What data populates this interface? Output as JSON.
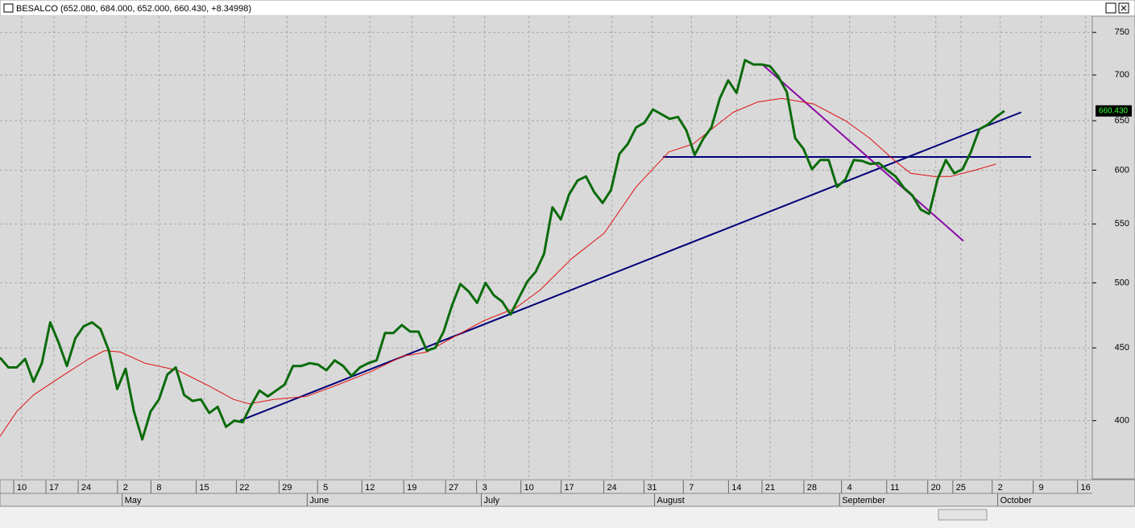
{
  "chart_data": {
    "type": "line",
    "title": "BESALCO (652.080, 684.000, 652.000, 660.430, +8.34998)",
    "log_scale": true,
    "grid": true,
    "ylim": [
      364,
      770
    ],
    "yticks": [
      400,
      450,
      500,
      550,
      600,
      650,
      700,
      750
    ],
    "xlim": [
      0,
      130.5
    ],
    "xticks": [
      {
        "value": 2.6,
        "label": "10"
      },
      {
        "value": 6.45,
        "label": "17"
      },
      {
        "value": 10.3,
        "label": "24"
      },
      {
        "value": 15.0,
        "label": "2"
      },
      {
        "value": 19.0,
        "label": "8"
      },
      {
        "value": 24.4,
        "label": "15"
      },
      {
        "value": 29.2,
        "label": "22"
      },
      {
        "value": 34.3,
        "label": "29"
      },
      {
        "value": 38.9,
        "label": "5"
      },
      {
        "value": 44.2,
        "label": "12"
      },
      {
        "value": 49.2,
        "label": "19"
      },
      {
        "value": 54.2,
        "label": "27"
      },
      {
        "value": 57.9,
        "label": "3"
      },
      {
        "value": 63.2,
        "label": "10"
      },
      {
        "value": 68.0,
        "label": "17"
      },
      {
        "value": 73.1,
        "label": "24"
      },
      {
        "value": 77.9,
        "label": "31"
      },
      {
        "value": 82.6,
        "label": "7"
      },
      {
        "value": 88.0,
        "label": "14"
      },
      {
        "value": 92.0,
        "label": "21"
      },
      {
        "value": 97.0,
        "label": "28"
      },
      {
        "value": 101.5,
        "label": "4"
      },
      {
        "value": 106.9,
        "label": "11"
      },
      {
        "value": 111.8,
        "label": "20"
      },
      {
        "value": 114.8,
        "label": "25"
      },
      {
        "value": 119.5,
        "label": "2"
      },
      {
        "value": 124.4,
        "label": "9"
      },
      {
        "value": 129.7,
        "label": "16"
      }
    ],
    "month_ticks": [
      {
        "value": 14.6,
        "label": "May"
      },
      {
        "value": 36.7,
        "label": "June"
      },
      {
        "value": 57.5,
        "label": "July"
      },
      {
        "value": 78.2,
        "label": "August"
      },
      {
        "value": 100.3,
        "label": "September"
      },
      {
        "value": 119.2,
        "label": "October"
      }
    ],
    "series": [
      {
        "color": "#0b6b0b",
        "values": [
          443,
          436,
          436,
          442,
          426,
          439,
          469,
          454,
          437,
          457,
          466,
          469,
          464,
          448,
          421,
          435,
          406,
          388,
          406,
          414,
          431,
          436,
          417,
          413,
          414,
          405,
          409,
          396,
          400,
          399,
          410,
          420,
          416,
          420,
          424,
          437,
          437,
          439,
          438,
          434,
          441,
          437,
          430,
          436,
          439,
          441,
          461,
          461,
          467,
          462,
          462,
          448,
          450,
          462,
          482,
          499,
          493,
          484,
          500,
          490,
          485,
          475,
          488,
          501,
          509,
          524,
          565,
          554,
          577,
          590,
          594,
          579,
          569,
          581,
          616,
          626,
          643,
          648,
          662,
          657,
          652,
          654,
          640,
          615,
          631,
          643,
          674,
          694,
          680,
          717,
          712,
          712,
          710,
          698,
          681,
          632,
          621,
          601,
          610,
          610,
          584,
          591,
          610,
          609,
          606,
          607,
          600,
          594,
          583,
          576,
          563,
          559,
          591,
          610,
          597,
          601,
          618,
          641,
          646,
          654,
          660.43
        ]
      },
      {
        "color": "#e01010",
        "x": [
          0,
          2,
          4,
          7.7,
          10.6,
          12.5,
          14.4,
          17.3,
          21.2,
          25,
          27.9,
          29.8,
          32.7,
          36.6,
          40.4,
          44.3,
          48.1,
          51,
          53.9,
          57.7,
          61.6,
          64.5,
          68.3,
          72.2,
          76,
          79.9,
          82.8,
          84.7,
          87.6,
          90.5,
          93.4,
          97.2,
          101,
          103.9,
          106.8,
          108.8,
          111.6,
          113.6,
          116.5,
          119
        ],
        "values": [
          390,
          406,
          417,
          431,
          442,
          448,
          447,
          439,
          434,
          423,
          414,
          411,
          414,
          416,
          424,
          433,
          444,
          447,
          457,
          470,
          480,
          494,
          520,
          542,
          584,
          618,
          626,
          639,
          659,
          670,
          674,
          668,
          650,
          632,
          610,
          597,
          594,
          594,
          600,
          606
        ]
      }
    ],
    "trend_lines": [
      {
        "color": "#00007a",
        "x": [
          28.7,
          122
        ],
        "values": [
          400,
          659
        ]
      },
      {
        "color": "#00007a",
        "x": [
          79.2,
          123.2
        ],
        "values": [
          613,
          613
        ]
      },
      {
        "color": "#8a0aa6",
        "x": [
          91.2,
          115.1
        ],
        "values": [
          711,
          535
        ]
      }
    ],
    "annotations": [
      {
        "text": "660.430",
        "value": 660.43
      }
    ]
  }
}
